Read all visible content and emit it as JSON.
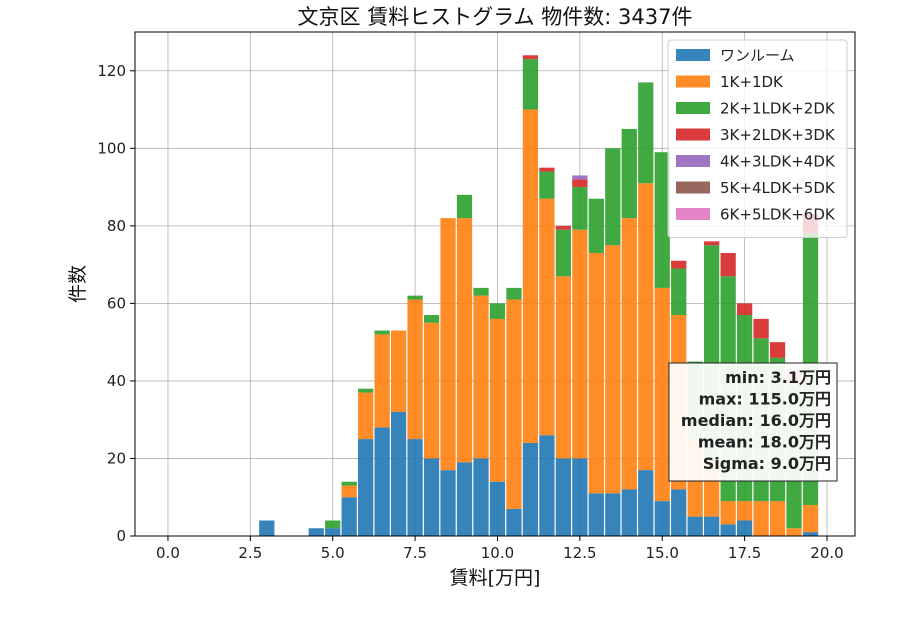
{
  "chart_data": {
    "type": "bar",
    "stacked": true,
    "title": "文京区 賃料ヒストグラム 物件数: 3437件",
    "xlabel": "賃料[万円]",
    "ylabel": "件数",
    "xlim": [
      -1.0,
      20.85
    ],
    "ylim": [
      0,
      130
    ],
    "xticks": [
      0.0,
      2.5,
      5.0,
      7.5,
      10.0,
      12.5,
      15.0,
      17.5,
      20.0
    ],
    "xtick_labels": [
      "0.0",
      "2.5",
      "5.0",
      "7.5",
      "10.0",
      "12.5",
      "15.0",
      "17.5",
      "20.0"
    ],
    "yticks": [
      0,
      20,
      40,
      60,
      80,
      100,
      120
    ],
    "ytick_labels": [
      "0",
      "20",
      "40",
      "60",
      "80",
      "100",
      "120"
    ],
    "grid": true,
    "legend_position": "top-right",
    "bin_width": 0.5,
    "bin_starts": [
      2.75,
      4.25,
      4.75,
      5.25,
      5.75,
      6.25,
      6.75,
      7.25,
      7.75,
      8.25,
      8.75,
      9.25,
      9.75,
      10.25,
      10.75,
      11.25,
      11.75,
      12.25,
      12.75,
      13.25,
      13.75,
      14.25,
      14.75,
      15.25,
      15.75,
      16.25,
      16.75,
      17.25,
      17.75,
      18.25,
      18.75,
      19.25
    ],
    "series": [
      {
        "name": "ワンルーム",
        "color": "#1f77b4",
        "values": [
          4,
          2,
          2,
          10,
          25,
          28,
          32,
          25,
          20,
          17,
          19,
          20,
          14,
          7,
          24,
          26,
          20,
          20,
          11,
          11,
          12,
          17,
          9,
          12,
          5,
          5,
          3,
          4,
          0,
          0,
          0,
          1
        ]
      },
      {
        "name": "1K+1DK",
        "color": "#ff7f0e",
        "values": [
          0,
          0,
          0,
          3,
          12,
          24,
          21,
          36,
          35,
          65,
          63,
          42,
          42,
          54,
          86,
          61,
          47,
          59,
          62,
          64,
          70,
          74,
          55,
          45,
          20,
          15,
          6,
          5,
          9,
          9,
          2,
          7
        ]
      },
      {
        "name": "2K+1LDK+2DK",
        "color": "#2ca02c",
        "values": [
          0,
          0,
          2,
          1,
          1,
          1,
          0,
          1,
          2,
          0,
          6,
          2,
          4,
          3,
          13,
          7,
          12,
          11,
          14,
          25,
          23,
          26,
          35,
          12,
          20,
          55,
          58,
          48,
          42,
          37,
          37,
          70
        ]
      },
      {
        "name": "3K+2LDK+3DK",
        "color": "#d62728",
        "values": [
          0,
          0,
          0,
          0,
          0,
          0,
          0,
          0,
          0,
          0,
          0,
          0,
          0,
          0,
          1,
          1,
          1,
          2,
          0,
          0,
          0,
          0,
          0,
          2,
          0,
          1,
          6,
          3,
          5,
          4,
          3,
          5
        ]
      },
      {
        "name": "4K+3LDK+4DK",
        "color": "#9467bd",
        "values": [
          0,
          0,
          0,
          0,
          0,
          0,
          0,
          0,
          0,
          0,
          0,
          0,
          0,
          0,
          0,
          0,
          0,
          1,
          0,
          0,
          0,
          0,
          0,
          0,
          0,
          0,
          0,
          0,
          0,
          0,
          1,
          0
        ]
      },
      {
        "name": "5K+4LDK+5DK",
        "color": "#8c564b",
        "values": [
          0,
          0,
          0,
          0,
          0,
          0,
          0,
          0,
          0,
          0,
          0,
          0,
          0,
          0,
          0,
          0,
          0,
          0,
          0,
          0,
          0,
          0,
          0,
          0,
          0,
          0,
          0,
          0,
          0,
          0,
          0,
          0
        ]
      },
      {
        "name": "6K+5LDK+6DK",
        "color": "#e377c2",
        "values": [
          0,
          0,
          0,
          0,
          0,
          0,
          0,
          0,
          0,
          0,
          0,
          0,
          0,
          0,
          0,
          0,
          0,
          0,
          0,
          0,
          0,
          0,
          0,
          0,
          0,
          0,
          0,
          0,
          0,
          0,
          0,
          0
        ]
      }
    ],
    "annotation": {
      "lines": [
        "min: 3.1万円",
        "max: 115.0万円",
        "median: 16.0万円",
        "mean: 18.0万円",
        "Sigma: 9.0万円"
      ]
    }
  }
}
